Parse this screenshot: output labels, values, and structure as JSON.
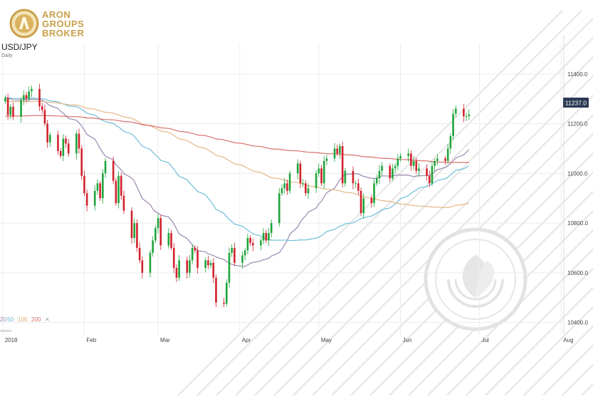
{
  "brand": {
    "name_lines": [
      "ARON",
      "GROUPS",
      "BROKER"
    ],
    "color": "#c9a04a"
  },
  "header": {
    "symbol": "USD/JPY",
    "interval": "Daily"
  },
  "price_tag": {
    "value": "11237.0",
    "background": "#2b3a55",
    "text_color": "#ffffff"
  },
  "legend": {
    "periods": [
      "20",
      "50",
      "100",
      "200"
    ],
    "close_glyph": "✕",
    "sub": "relative"
  },
  "colors": {
    "up": "#1fa53a",
    "down": "#d1222c",
    "ma20": "#9b86b0",
    "ma50": "#6fbfd6",
    "ma100": "#e4b886",
    "ma200": "#d9706a",
    "grid": "#ececec"
  },
  "chart_data": {
    "type": "candlestick",
    "ylim": [
      10350,
      11520
    ],
    "y_ticks": [
      "11400.0",
      "11200.0",
      "11000.0",
      "10800.0",
      "10600.0",
      "10400.0"
    ],
    "y_tick_values": [
      11400,
      11200,
      11000,
      10800,
      10600,
      10400
    ],
    "x_ticks": [
      "2018",
      "Feb",
      "Mar",
      "Apr",
      "May",
      "Jun",
      "Jul",
      "Aug"
    ],
    "x_tick_days": [
      0,
      31,
      59,
      90,
      120,
      151,
      181,
      212
    ],
    "x_range_days": [
      -1,
      213
    ],
    "last_price": 11237.0,
    "closes": [
      11305,
      11235,
      11268,
      11228,
      11295,
      11315,
      11300,
      11330,
      11340,
      11270,
      11255,
      11200,
      11125,
      11155,
      11090,
      11070,
      11140,
      11120,
      11080,
      11160,
      11100,
      10990,
      10920,
      10870,
      10930,
      10960,
      10900,
      11000,
      11050,
      10970,
      10880,
      10990,
      10910,
      10850,
      10740,
      10800,
      10700,
      10650,
      10600,
      10680,
      10730,
      10780,
      10820,
      10710,
      10760,
      10700,
      10620,
      10580,
      10650,
      10600,
      10650,
      10700,
      10690,
      10620,
      10650,
      10630,
      10640,
      10580,
      10480,
      10475,
      10560,
      10680,
      10700,
      10640,
      10670,
      10690,
      10740,
      10720,
      10710,
      10730,
      10760,
      10730,
      10760,
      10800,
      10920,
      10940,
      10960,
      10930,
      11000,
      11040,
      10960,
      10960,
      10920,
      10940,
      11000,
      11020,
      10960,
      11050,
      11060,
      11100,
      11080,
      11110,
      10960,
      11010,
      10960,
      10960,
      10930,
      10840,
      10900,
      10880,
      10960,
      10980,
      11010,
      11030,
      10980,
      11020,
      11030,
      11060,
      11070,
      11080,
      11030,
      11050,
      11010,
      11020,
      10990,
      10960,
      11030,
      11050,
      11060,
      11050,
      11100,
      11150,
      11240,
      11260,
      11230,
      11230,
      11237
    ]
  }
}
